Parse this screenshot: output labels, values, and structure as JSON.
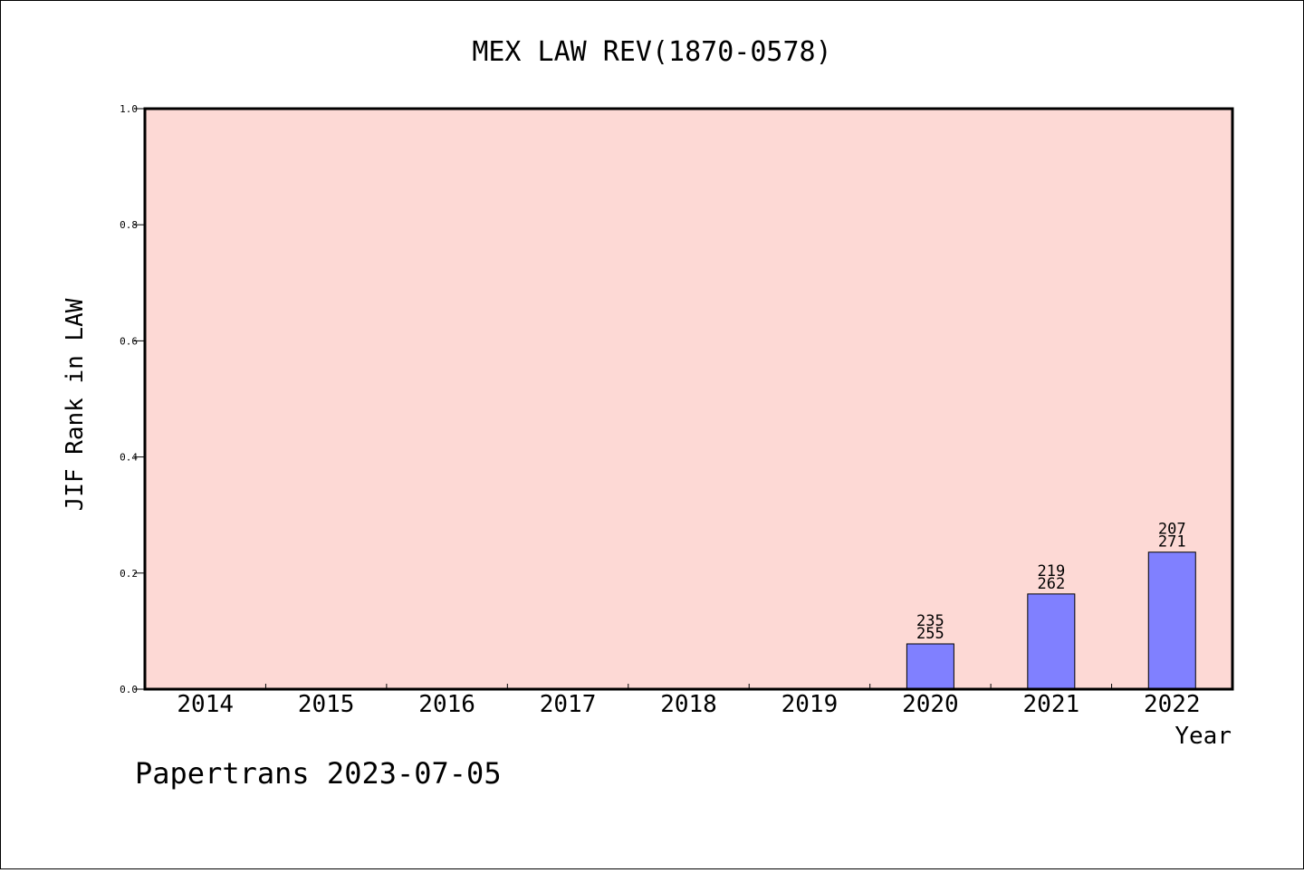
{
  "chart_data": {
    "type": "bar",
    "title": "MEX LAW REV(1870-0578)",
    "xlabel": "Year",
    "ylabel": "JIF Rank in LAW",
    "ylim": [
      0,
      1.0
    ],
    "yticks": [
      "0.0",
      "0.2",
      "0.4",
      "0.6",
      "0.8",
      "1.0"
    ],
    "categories": [
      "2014",
      "2015",
      "2016",
      "2017",
      "2018",
      "2019",
      "2020",
      "2021",
      "2022"
    ],
    "values": [
      null,
      null,
      null,
      null,
      null,
      null,
      0.078,
      0.164,
      0.236
    ],
    "bar_labels": [
      null,
      null,
      null,
      null,
      null,
      null,
      [
        "235",
        "255"
      ],
      [
        "219",
        "262"
      ],
      [
        "207",
        "271"
      ]
    ],
    "grid": false,
    "colors": {
      "plot_bg": "#fdd9d5",
      "bar": "#8080ff"
    }
  },
  "footer": {
    "text": "Papertrans 2023-07-05"
  }
}
